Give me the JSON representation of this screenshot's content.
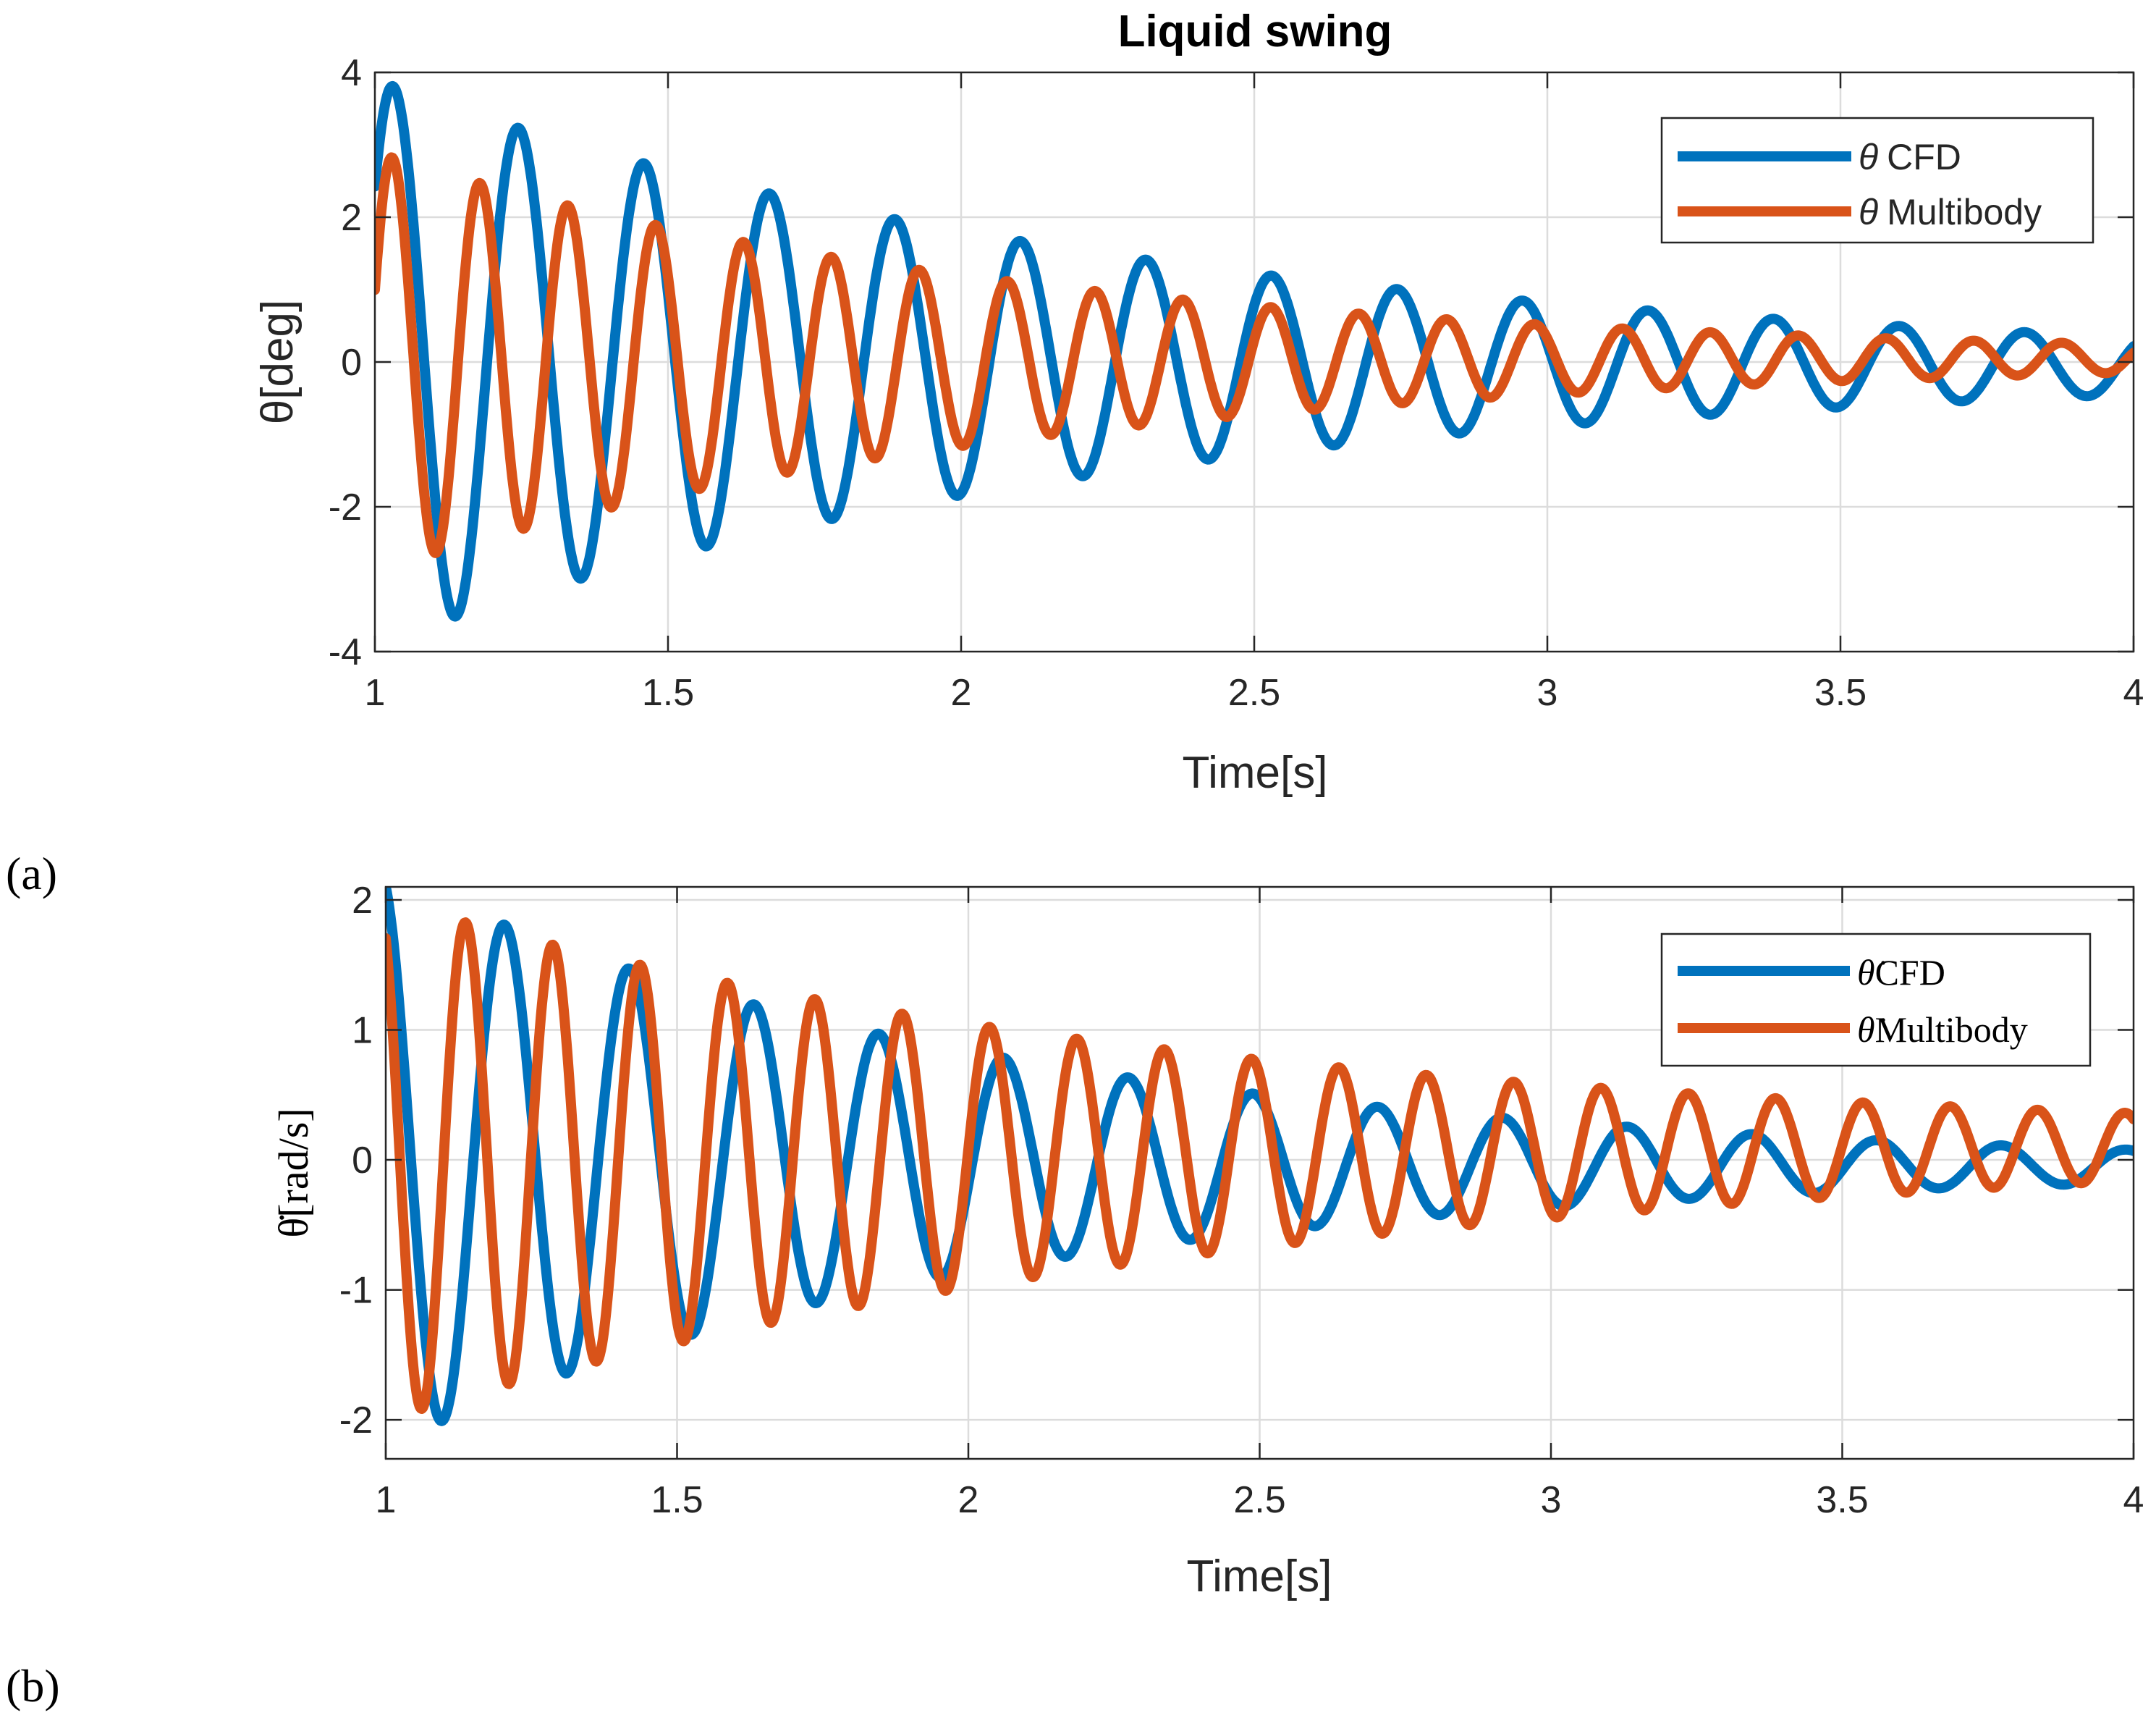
{
  "chart_data": [
    {
      "type": "line",
      "panel_label": "(a)",
      "title": "Liquid swing",
      "xlabel": "Time[s]",
      "ylabel": "θ[deg]",
      "xlim": [
        1,
        4
      ],
      "ylim": [
        -4,
        4
      ],
      "xticks": [
        1,
        1.5,
        2,
        2.5,
        3,
        3.5,
        4
      ],
      "xtick_labels": [
        "1",
        "1.5",
        "2",
        "2.5",
        "3",
        "3.5",
        "4"
      ],
      "yticks": [
        -4,
        -2,
        0,
        2,
        4
      ],
      "ytick_labels": [
        "-4",
        "-2",
        "0",
        "2",
        "4"
      ],
      "grid": true,
      "legend_position": "top-right",
      "series": [
        {
          "name": "θ CFD",
          "symbol": "θ",
          "label_text": "CFD",
          "color": "#0072BD",
          "model": {
            "A0": 3.9,
            "decay": 0.76,
            "freq": 4.67,
            "phase": -0.9,
            "t0": 1.0,
            "end_value": -0.05
          }
        },
        {
          "name": "θ Multibody",
          "symbol": "θ",
          "label_text": "Multibody",
          "color": "#D95319",
          "model": {
            "A0": 2.9,
            "decay": 0.9,
            "freq": 6.67,
            "phase": -1.22,
            "t0": 1.0,
            "end_value": 0.05
          }
        }
      ]
    },
    {
      "type": "line",
      "panel_label": "(b)",
      "title": "",
      "xlabel": "Time[s]",
      "ylabel": "θ̇[rad/s]",
      "xlim": [
        1,
        4
      ],
      "ylim": [
        -2.3,
        2.1
      ],
      "xticks": [
        1,
        1.5,
        2,
        2.5,
        3,
        3.5,
        4
      ],
      "xtick_labels": [
        "1",
        "1.5",
        "2",
        "2.5",
        "3",
        "3.5",
        "4"
      ],
      "yticks": [
        -2,
        -1,
        0,
        1,
        2
      ],
      "ytick_labels": [
        "-2",
        "-1",
        "0",
        "1",
        "2"
      ],
      "grid": true,
      "legend_position": "top-right",
      "series": [
        {
          "name": "θ̇CFD",
          "symbol": "θ̇",
          "label_text": "CFD",
          "color": "#0072BD",
          "model": {
            "A0": 2.2,
            "decay": 0.95,
            "freq": 4.67,
            "phase": 0.3,
            "t0": 1.0,
            "end_value": -0.05
          }
        },
        {
          "name": "θ̇Multibody",
          "symbol": "θ̇",
          "label_text": "Multibody",
          "color": "#D95319",
          "model": {
            "A0": 2.0,
            "decay": 0.68,
            "freq": 6.67,
            "phase": 0.55,
            "t0": 1.0,
            "end_value": 0.1
          }
        }
      ]
    }
  ]
}
